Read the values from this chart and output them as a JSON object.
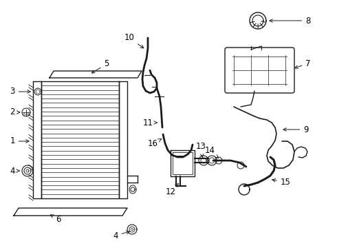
{
  "bg_color": "#ffffff",
  "lc": "#1a1a1a",
  "lw": 1.0,
  "fs": 8.5
}
